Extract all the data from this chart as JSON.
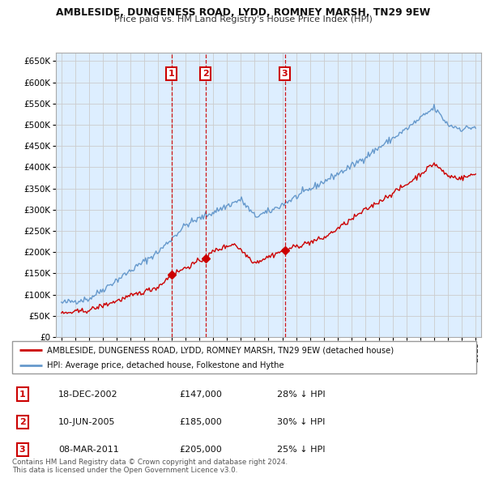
{
  "title": "AMBLESIDE, DUNGENESS ROAD, LYDD, ROMNEY MARSH, TN29 9EW",
  "subtitle": "Price paid vs. HM Land Registry's House Price Index (HPI)",
  "ylabel_ticks": [
    0,
    50000,
    100000,
    150000,
    200000,
    250000,
    300000,
    350000,
    400000,
    450000,
    500000,
    550000,
    600000,
    650000
  ],
  "ylabel_labels": [
    "£0",
    "£50K",
    "£100K",
    "£150K",
    "£200K",
    "£250K",
    "£300K",
    "£350K",
    "£400K",
    "£450K",
    "£500K",
    "£550K",
    "£600K",
    "£650K"
  ],
  "ylim": [
    0,
    670000
  ],
  "xlim_start": 1994.6,
  "xlim_end": 2025.4,
  "sale_dates": [
    2002.96,
    2005.44,
    2011.18
  ],
  "sale_prices": [
    147000,
    185000,
    205000
  ],
  "sale_labels": [
    "1",
    "2",
    "3"
  ],
  "sale_info": [
    {
      "label": "1",
      "date": "18-DEC-2002",
      "price": "£147,000",
      "pct": "28% ↓ HPI"
    },
    {
      "label": "2",
      "date": "10-JUN-2005",
      "price": "£185,000",
      "pct": "30% ↓ HPI"
    },
    {
      "label": "3",
      "date": "08-MAR-2011",
      "price": "£205,000",
      "pct": "25% ↓ HPI"
    }
  ],
  "legend_property": "AMBLESIDE, DUNGENESS ROAD, LYDD, ROMNEY MARSH, TN29 9EW (detached house)",
  "legend_hpi": "HPI: Average price, detached house, Folkestone and Hythe",
  "footer": "Contains HM Land Registry data © Crown copyright and database right 2024.\nThis data is licensed under the Open Government Licence v3.0.",
  "property_color": "#cc0000",
  "hpi_color": "#6699cc",
  "hpi_fill_color": "#ddeeff",
  "grid_color": "#cccccc",
  "bg_color": "#ffffff"
}
